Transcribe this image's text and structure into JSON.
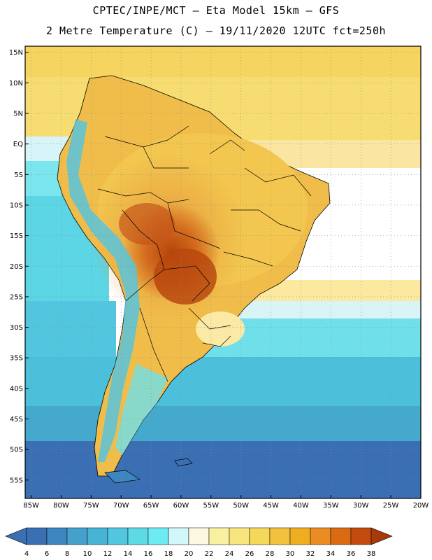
{
  "header": {
    "line1": "CPTEC/INPE/MCT –  Eta Model 15km – GFS",
    "line2": "2 Metre Temperature (C) – 19/11/2020 12UTC fct=250h"
  },
  "map": {
    "lat_labels": [
      "15N",
      "10N",
      "5N",
      "EQ",
      "5S",
      "10S",
      "15S",
      "20S",
      "25S",
      "30S",
      "35S",
      "40S",
      "45S",
      "50S",
      "55S"
    ],
    "lon_labels": [
      "85W",
      "80W",
      "75W",
      "70W",
      "65W",
      "60W",
      "55W",
      "50W",
      "45W",
      "40W",
      "35W",
      "30W",
      "25W",
      "20W"
    ],
    "lon_range": [
      -86,
      -20
    ],
    "lat_range": [
      -58,
      16
    ]
  },
  "colorbar": {
    "labels": [
      "4",
      "6",
      "8",
      "10",
      "12",
      "14",
      "16",
      "18",
      "20",
      "22",
      "24",
      "26",
      "28",
      "30",
      "32",
      "34",
      "36",
      "38"
    ],
    "colors": [
      "#3a6fb4",
      "#3d86c0",
      "#45a0cc",
      "#47b4d6",
      "#53c6df",
      "#5ed9e6",
      "#6cecf2",
      "#d2f6fa",
      "#fdf8e0",
      "#faf1a0",
      "#f8e47c",
      "#f5d85a",
      "#f2c23f",
      "#efad20",
      "#ea8c22",
      "#db6a13",
      "#c44a0f",
      "#a83a08"
    ]
  }
}
